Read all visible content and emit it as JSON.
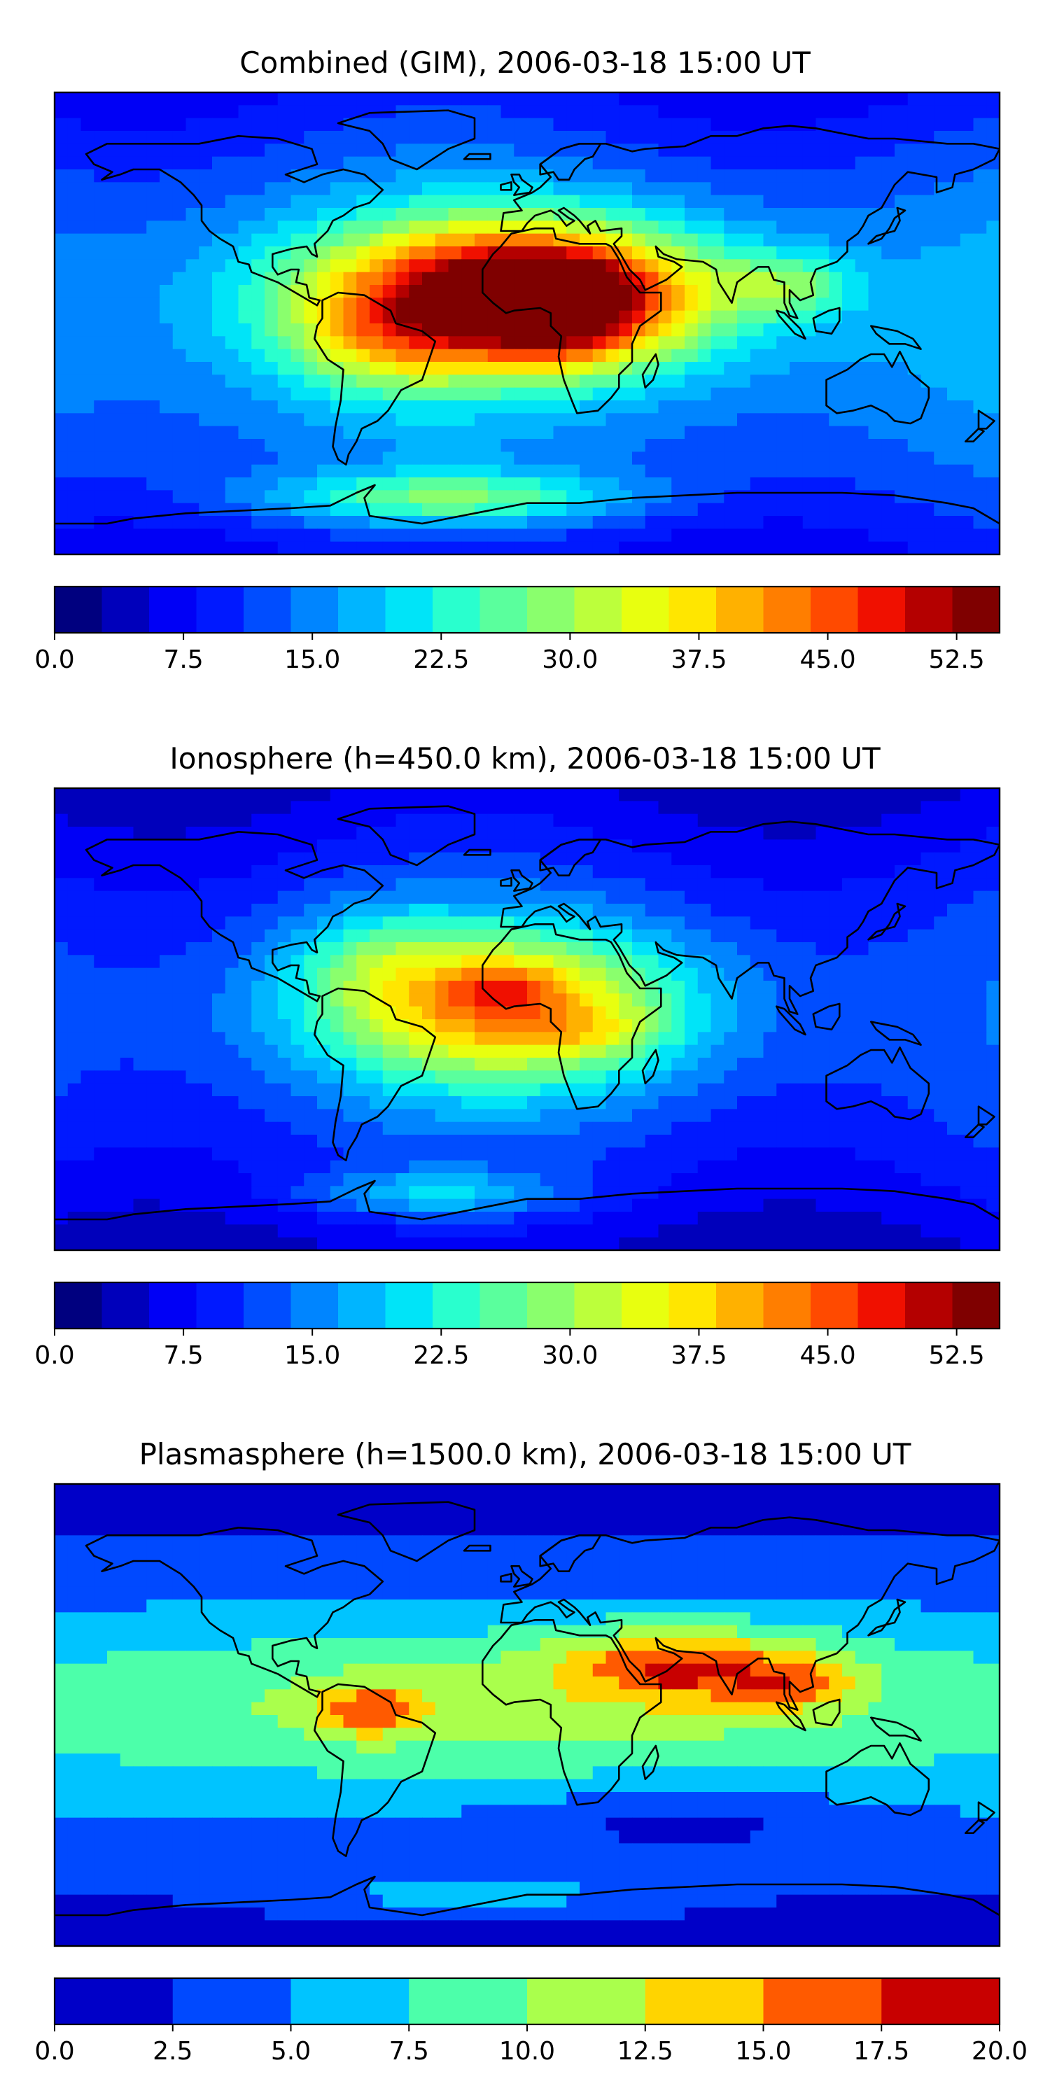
{
  "chart_data": [
    {
      "type": "heatmap",
      "id": "combined",
      "title": "Combined (GIM), 2006-03-18 15:00 UT",
      "colorbar": {
        "min": 0.0,
        "max": 55.0,
        "step": 2.5,
        "tick_values": [
          0.0,
          7.5,
          15.0,
          22.5,
          30.0,
          37.5,
          45.0,
          52.5
        ],
        "tick_labels": [
          "0.0",
          "7.5",
          "15.0",
          "22.5",
          "30.0",
          "37.5",
          "45.0",
          "52.5"
        ],
        "colors": [
          "#00007f",
          "#0000bb",
          "#0000f6",
          "#0019ff",
          "#004dff",
          "#0085ff",
          "#00b5ff",
          "#00e4f8",
          "#29ffce",
          "#5aff9d",
          "#8aff6d",
          "#bcff3b",
          "#e8ff0f",
          "#ffe600",
          "#ffb100",
          "#ff7e00",
          "#ff4a00",
          "#f01000",
          "#b40000",
          "#7f0000"
        ]
      },
      "blobs": [
        {
          "lon": -5,
          "lat": 12,
          "rx": 75,
          "ry": 28,
          "v": 40
        },
        {
          "lon": 8,
          "lat": 15,
          "rx": 30,
          "ry": 12,
          "v": 12
        },
        {
          "lon": -55,
          "lat": -8,
          "rx": 35,
          "ry": 20,
          "v": 10
        },
        {
          "lon": 10,
          "lat": -5,
          "rx": 30,
          "ry": 15,
          "v": 8
        },
        {
          "lon": 100,
          "lat": 15,
          "rx": 25,
          "ry": 12,
          "v": 10
        },
        {
          "lon": -30,
          "lat": -68,
          "rx": 70,
          "ry": 10,
          "v": 15
        },
        {
          "lon": 20,
          "lat": 5,
          "rx": 40,
          "ry": 20,
          "v": 6
        }
      ]
    },
    {
      "type": "heatmap",
      "id": "ionosphere",
      "title": "Ionosphere  (h=450.0 km), 2006-03-18 15:00 UT",
      "colorbar": {
        "min": 0.0,
        "max": 55.0,
        "step": 2.5,
        "tick_values": [
          0.0,
          7.5,
          15.0,
          22.5,
          30.0,
          37.5,
          45.0,
          52.5
        ],
        "tick_labels": [
          "0.0",
          "7.5",
          "15.0",
          "22.5",
          "30.0",
          "37.5",
          "45.0",
          "52.5"
        ],
        "colors": [
          "#00007f",
          "#0000bb",
          "#0000f6",
          "#0019ff",
          "#004dff",
          "#0085ff",
          "#00b5ff",
          "#00e4f8",
          "#29ffce",
          "#5aff9d",
          "#8aff6d",
          "#bcff3b",
          "#e8ff0f",
          "#ffe600",
          "#ffb100",
          "#ff7e00",
          "#ff4a00",
          "#f01000",
          "#b40000",
          "#7f0000"
        ]
      },
      "blobs": [
        {
          "lon": -10,
          "lat": 5,
          "rx": 70,
          "ry": 30,
          "v": 28
        },
        {
          "lon": -10,
          "lat": 12,
          "rx": 20,
          "ry": 8,
          "v": 8
        },
        {
          "lon": 25,
          "lat": -5,
          "rx": 25,
          "ry": 10,
          "v": 5
        },
        {
          "lon": -35,
          "lat": -68,
          "rx": 50,
          "ry": 9,
          "v": 10
        },
        {
          "lon": -60,
          "lat": 25,
          "rx": 30,
          "ry": 20,
          "v": 6
        }
      ]
    },
    {
      "type": "heatmap",
      "id": "plasmasphere",
      "title": "Plasmasphere (h=1500.0 km), 2006-03-18 15:00 UT",
      "colorbar": {
        "min": 0.0,
        "max": 20.0,
        "step": 2.5,
        "tick_values": [
          0.0,
          2.5,
          5.0,
          7.5,
          10.0,
          12.5,
          15.0,
          17.5,
          20.0
        ],
        "tick_labels": [
          "0.0",
          "2.5",
          "5.0",
          "7.5",
          "10.0",
          "12.5",
          "15.0",
          "17.5",
          "20.0"
        ],
        "colors": [
          "#0000c8",
          "#0049ff",
          "#00c4ff",
          "#4cffaa",
          "#aaff4c",
          "#ffd400",
          "#ff5a00",
          "#c80000"
        ]
      },
      "blobs": [
        {
          "lon": 0,
          "lat": 5,
          "rx": 200,
          "ry": 30,
          "v": 4.5
        },
        {
          "lon": 60,
          "lat": 20,
          "rx": 50,
          "ry": 15,
          "v": 7.5
        },
        {
          "lon": 55,
          "lat": 17,
          "rx": 12,
          "ry": 6,
          "v": 3
        },
        {
          "lon": 30,
          "lat": 20,
          "rx": 8,
          "ry": 4,
          "v": 2
        },
        {
          "lon": 100,
          "lat": 12,
          "rx": 25,
          "ry": 10,
          "v": 5
        },
        {
          "lon": -60,
          "lat": 2,
          "rx": 20,
          "ry": 10,
          "v": 7
        },
        {
          "lon": -20,
          "lat": -70,
          "rx": 60,
          "ry": 8,
          "v": 4
        },
        {
          "lon": 60,
          "lat": -40,
          "rx": 60,
          "ry": 12,
          "v": -3
        }
      ]
    }
  ],
  "map": {
    "lon_range": [
      -180,
      180
    ],
    "lat_range": [
      -90,
      90
    ],
    "coastline_color": "#000000"
  }
}
